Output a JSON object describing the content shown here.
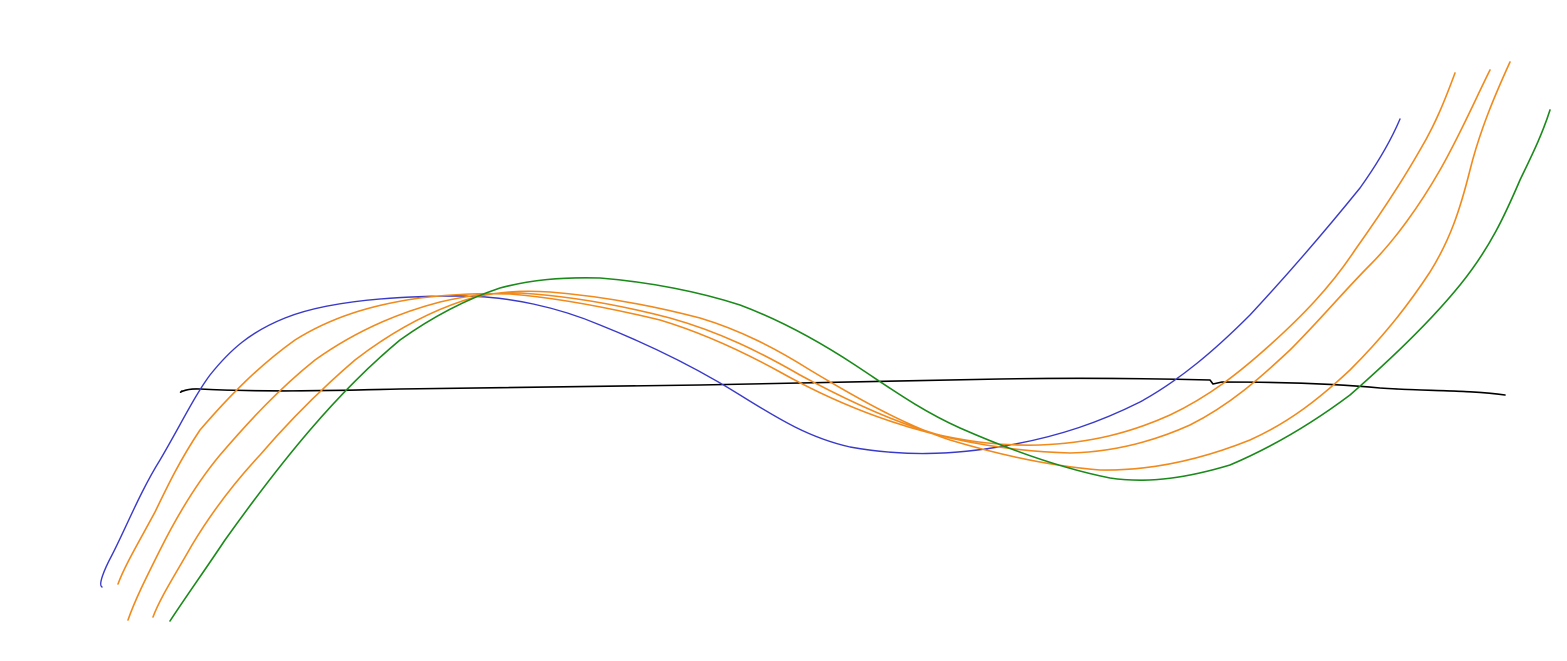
{
  "drawing": {
    "background": "#ffffff",
    "strokes": [
      {
        "name": "baseline-axis",
        "kind": "axis",
        "color": "#000000"
      },
      {
        "name": "blue-curve",
        "kind": "curve",
        "color": "#3a3ac8"
      },
      {
        "name": "orange-curve-1",
        "kind": "curve",
        "color": "#f08a1c"
      },
      {
        "name": "orange-curve-2",
        "kind": "curve",
        "color": "#f08a1c"
      },
      {
        "name": "orange-curve-3",
        "kind": "curve",
        "color": "#f08a1c"
      },
      {
        "name": "green-curve",
        "kind": "curve",
        "color": "#1a8a1a"
      }
    ]
  }
}
